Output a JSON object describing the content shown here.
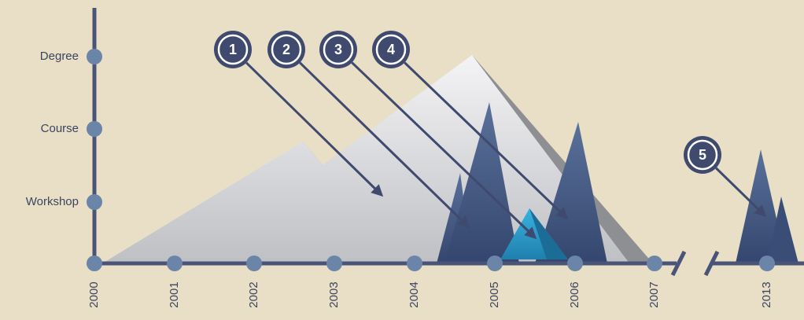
{
  "y_levels": [
    "Degree",
    "Course",
    "Workshop"
  ],
  "x_labels": [
    "2000",
    "2001",
    "2002",
    "2003",
    "2004",
    "2005",
    "2006",
    "2007",
    "2013"
  ],
  "callouts": [
    "1",
    "2",
    "3",
    "4",
    "5"
  ]
}
